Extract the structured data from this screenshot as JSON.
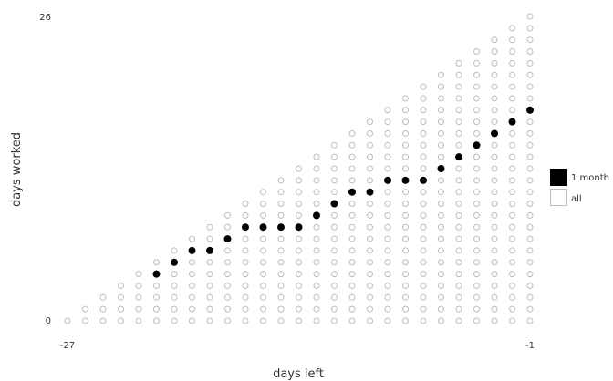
{
  "chart_data": {
    "type": "scatter",
    "xlabel": "days left",
    "ylabel": "days worked",
    "xlim": [
      -27,
      -1
    ],
    "ylim": [
      0,
      26
    ],
    "x_ticks": [
      "-27",
      "-1"
    ],
    "y_ticks": [
      "0",
      "26"
    ],
    "grid": false,
    "legend_position": "right",
    "series": [
      {
        "name": "1 month",
        "marker": "filled-circle",
        "color": "#000000",
        "points": [
          [
            -22,
            4
          ],
          [
            -21,
            5
          ],
          [
            -20,
            6
          ],
          [
            -19,
            6
          ],
          [
            -18,
            7
          ],
          [
            -17,
            8
          ],
          [
            -16,
            8
          ],
          [
            -15,
            8
          ],
          [
            -14,
            8
          ],
          [
            -13,
            9
          ],
          [
            -12,
            10
          ],
          [
            -11,
            11
          ],
          [
            -10,
            11
          ],
          [
            -9,
            12
          ],
          [
            -8,
            12
          ],
          [
            -7,
            12
          ],
          [
            -6,
            13
          ],
          [
            -5,
            14
          ],
          [
            -4,
            15
          ],
          [
            -3,
            16
          ],
          [
            -2,
            17
          ],
          [
            -1,
            18
          ]
        ]
      },
      {
        "name": "all",
        "marker": "open-circle",
        "color": "#bdbdbd",
        "rule": "every integer pair (x, y) with -27 <= x <= -1 and 0 <= y <= x + 27"
      }
    ]
  }
}
